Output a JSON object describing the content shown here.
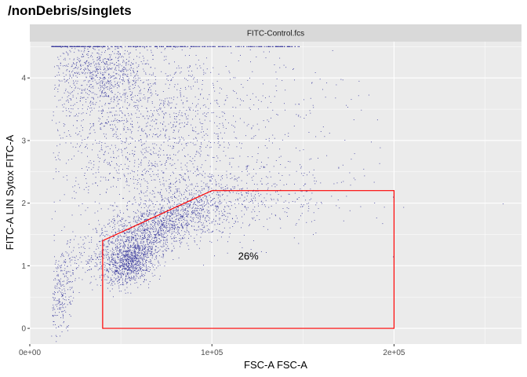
{
  "title": "/nonDebris/singlets",
  "chart_data": {
    "type": "scatter",
    "panel": "FITC-Control.fcs",
    "xlabel": "FSC-A FSC-A",
    "ylabel": "FITC-A LIN Sytox FITC-A",
    "xlim": [
      0,
      270000
    ],
    "ylim": [
      -0.25,
      4.58
    ],
    "xticks": [
      0,
      100000,
      200000
    ],
    "xtick_labels": [
      "0e+00",
      "1e+05",
      "2e+05"
    ],
    "yticks": [
      0,
      1,
      2,
      3,
      4
    ],
    "ytick_labels": [
      "0",
      "1",
      "2",
      "3",
      "4"
    ],
    "point_color": "#3b3b9e",
    "panel_bg": "#ebebeb",
    "strip_bg": "#d9d9d9",
    "grid": true,
    "gate": {
      "color": "#ff0000",
      "label": "26%",
      "label_pos": [
        120000,
        1.1
      ],
      "polygon": [
        [
          40000,
          0
        ],
        [
          40000,
          1.4
        ],
        [
          100000,
          2.2
        ],
        [
          200000,
          2.2
        ],
        [
          200000,
          0
        ]
      ]
    },
    "populations": [
      {
        "name": "",
        "n": 1700,
        "cx": 70000,
        "cy": 1.6,
        "sx": 22000,
        "sy": 0.35,
        "corr": 0.75
      },
      {
        "name": "",
        "n": 900,
        "cx": 55000,
        "cy": 1.05,
        "sx": 7000,
        "sy": 0.18,
        "corr": 0.3
      },
      {
        "name": "",
        "n": 1500,
        "cx": 60000,
        "cy": 3.2,
        "sx": 25000,
        "sy": 0.75,
        "corr": 0.0
      },
      {
        "name": "",
        "n": 700,
        "cx": 38000,
        "cy": 4.1,
        "sx": 12000,
        "sy": 0.3,
        "corr": 0.0
      },
      {
        "name": "",
        "n": 500,
        "cx": 110000,
        "cy": 2.0,
        "sx": 35000,
        "sy": 0.35,
        "corr": 0.2
      },
      {
        "name": "",
        "n": 250,
        "cx": 18000,
        "cy": 0.6,
        "sx": 4000,
        "sy": 0.35,
        "corr": 0.5
      },
      {
        "name": "",
        "n": 250,
        "cx": 120000,
        "cy": 3.5,
        "sx": 30000,
        "sy": 0.6,
        "corr": 0.0
      }
    ],
    "saturation_line": {
      "y": 4.5,
      "x_range": [
        12000,
        150000
      ],
      "n": 350
    }
  }
}
